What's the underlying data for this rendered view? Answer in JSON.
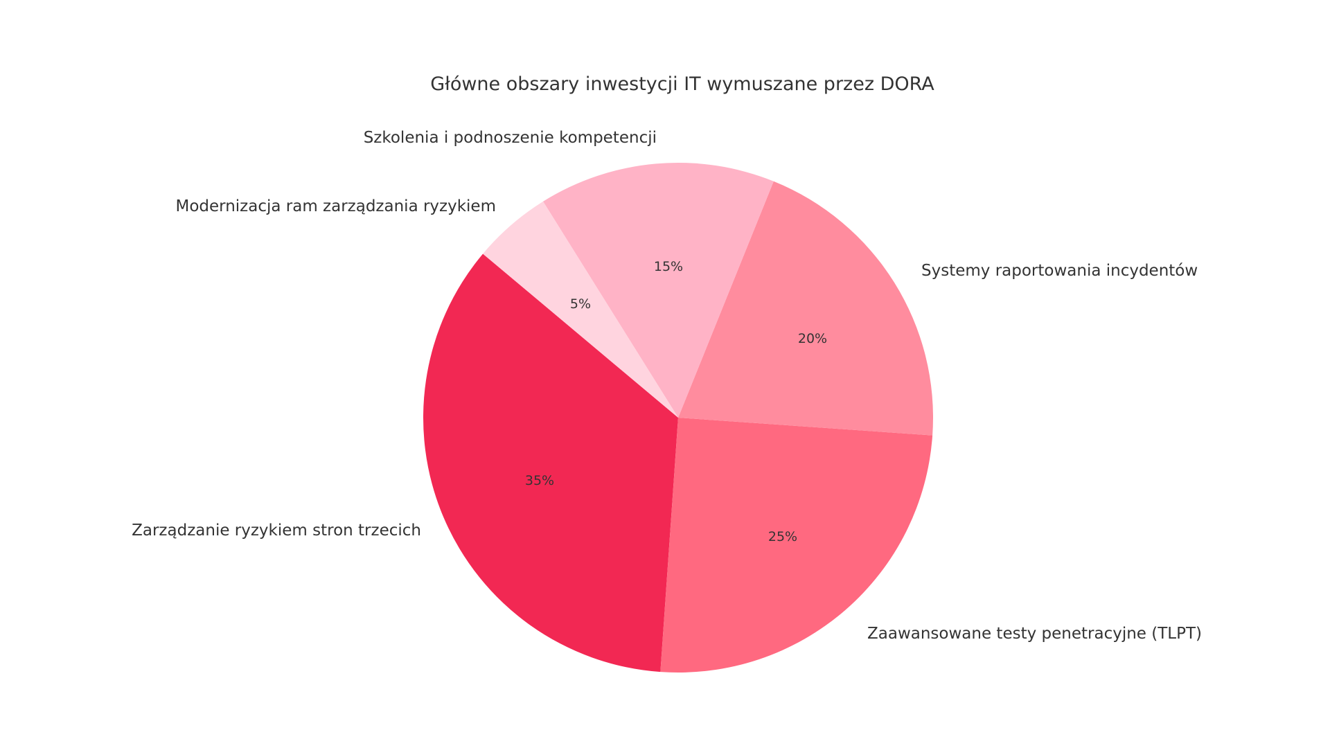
{
  "chart_data": {
    "type": "pie",
    "title": "Główne obszary inwestycji IT wymuszane przez DORA",
    "startangle": 140,
    "counterclock": true,
    "slices": [
      {
        "label": "Zarządzanie ryzykiem stron trzecich",
        "value": 35,
        "pct_label": "35%",
        "color": "#F22853"
      },
      {
        "label": "Zaawansowane testy penetracyjne (TLPT)",
        "value": 25,
        "pct_label": "25%",
        "color": "#FF6980"
      },
      {
        "label": "Systemy raportowania incydentów",
        "value": 20,
        "pct_label": "20%",
        "color": "#FF8C9E"
      },
      {
        "label": "Szkolenia i podnoszenie kompetencji",
        "value": 15,
        "pct_label": "15%",
        "color": "#FFB3C6"
      },
      {
        "label": "Modernizacja ram zarządzania ryzykiem",
        "value": 5,
        "pct_label": "5%",
        "color": "#FFD4DF"
      }
    ],
    "categories": [
      "Zarządzanie ryzykiem stron trzecich",
      "Zaawansowane testy penetracyjne (TLPT)",
      "Systemy raportowania incydentów",
      "Szkolenia i podnoszenie kompetencji",
      "Modernizacja ram zarządzania ryzykiem"
    ],
    "values": [
      35,
      25,
      20,
      15,
      5
    ],
    "legend": "none (labels placed beside slices)"
  }
}
